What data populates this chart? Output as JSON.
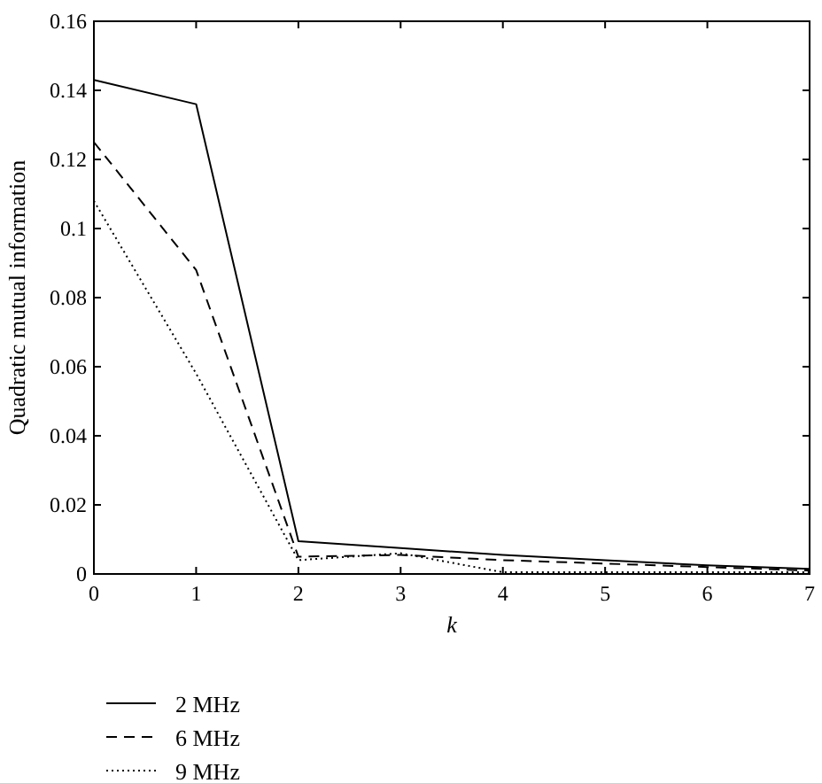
{
  "chart_data": {
    "type": "line",
    "xlabel": "k",
    "ylabel": "Quadratic mutual information",
    "x": [
      0,
      1,
      2,
      3,
      4,
      5,
      6,
      7
    ],
    "series": [
      {
        "name": "2 MHz",
        "color": "#000000",
        "line_style": "solid",
        "values": [
          0.143,
          0.136,
          0.0095,
          0.0075,
          0.0055,
          0.004,
          0.0025,
          0.0015
        ]
      },
      {
        "name": "6 MHz",
        "color": "#000000",
        "line_style": "dashed",
        "values": [
          0.125,
          0.088,
          0.005,
          0.0055,
          0.004,
          0.003,
          0.002,
          0.001
        ]
      },
      {
        "name": "9 MHz",
        "color": "#000000",
        "line_style": "dotted",
        "values": [
          0.108,
          0.058,
          0.004,
          0.006,
          0.0005,
          0.0005,
          0.0005,
          0.0005
        ]
      }
    ],
    "xlim": [
      0,
      7
    ],
    "xticks": [
      0,
      1,
      2,
      3,
      4,
      5,
      6,
      7
    ],
    "ylim": [
      0,
      0.16
    ],
    "yticks": [
      0,
      0.02,
      0.04,
      0.06,
      0.08,
      0.1,
      0.12,
      0.14,
      0.16
    ],
    "legend": "bottom left"
  }
}
